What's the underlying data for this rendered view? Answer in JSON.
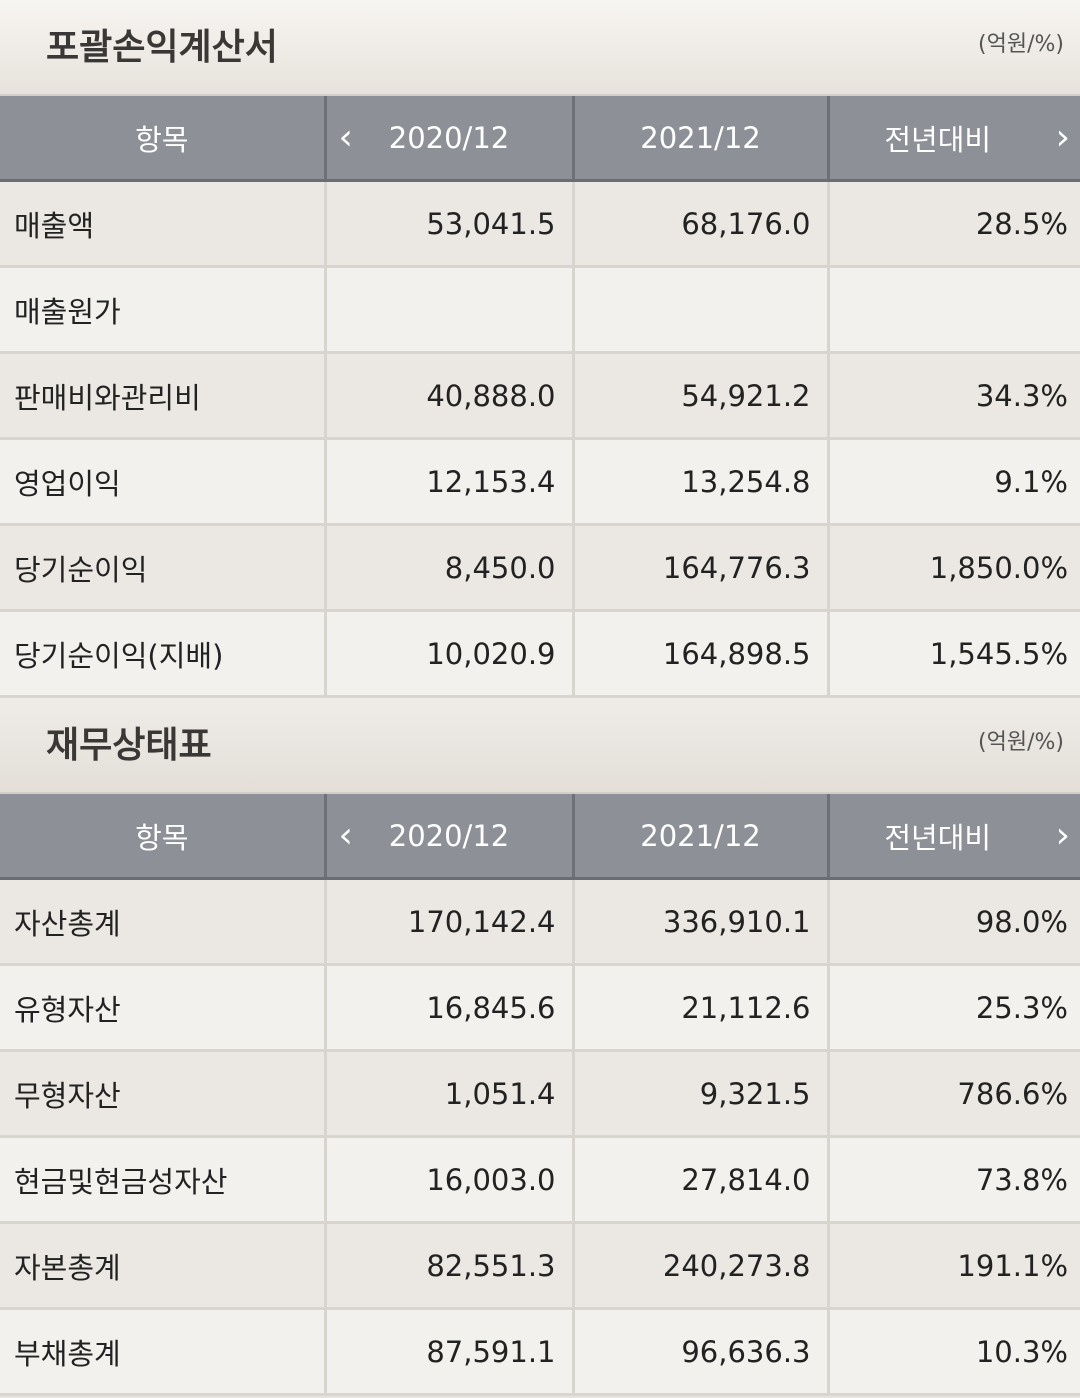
{
  "income_statement": {
    "title": "포괄손익계산서",
    "unit": "(억원/%)",
    "headers": {
      "item": "항목",
      "col1": "2020/12",
      "col2": "2021/12",
      "col3": "전년대비"
    },
    "rows": [
      {
        "label": "매출액",
        "v2020": "53,041.5",
        "v2021": "68,176.0",
        "yoy": "28.5%"
      },
      {
        "label": "매출원가",
        "v2020": "",
        "v2021": "",
        "yoy": ""
      },
      {
        "label": "판매비와관리비",
        "v2020": "40,888.0",
        "v2021": "54,921.2",
        "yoy": "34.3%"
      },
      {
        "label": "영업이익",
        "v2020": "12,153.4",
        "v2021": "13,254.8",
        "yoy": "9.1%"
      },
      {
        "label": "당기순이익",
        "v2020": "8,450.0",
        "v2021": "164,776.3",
        "yoy": "1,850.0%"
      },
      {
        "label": "당기순이익(지배)",
        "v2020": "10,020.9",
        "v2021": "164,898.5",
        "yoy": "1,545.5%"
      }
    ]
  },
  "balance_sheet": {
    "title": "재무상태표",
    "unit": "(억원/%)",
    "headers": {
      "item": "항목",
      "col1": "2020/12",
      "col2": "2021/12",
      "col3": "전년대비"
    },
    "rows": [
      {
        "label": "자산총계",
        "v2020": "170,142.4",
        "v2021": "336,910.1",
        "yoy": "98.0%"
      },
      {
        "label": "유형자산",
        "v2020": "16,845.6",
        "v2021": "21,112.6",
        "yoy": "25.3%"
      },
      {
        "label": "무형자산",
        "v2020": "1,051.4",
        "v2021": "9,321.5",
        "yoy": "786.6%"
      },
      {
        "label": "현금및현금성자산",
        "v2020": "16,003.0",
        "v2021": "27,814.0",
        "yoy": "73.8%"
      },
      {
        "label": "자본총계",
        "v2020": "82,551.3",
        "v2021": "240,273.8",
        "yoy": "191.1%"
      },
      {
        "label": "부채총계",
        "v2020": "87,591.1",
        "v2021": "96,636.3",
        "yoy": "10.3%"
      }
    ]
  },
  "icons": {
    "prev": "chevron-left-icon",
    "next": "chevron-right-icon"
  }
}
